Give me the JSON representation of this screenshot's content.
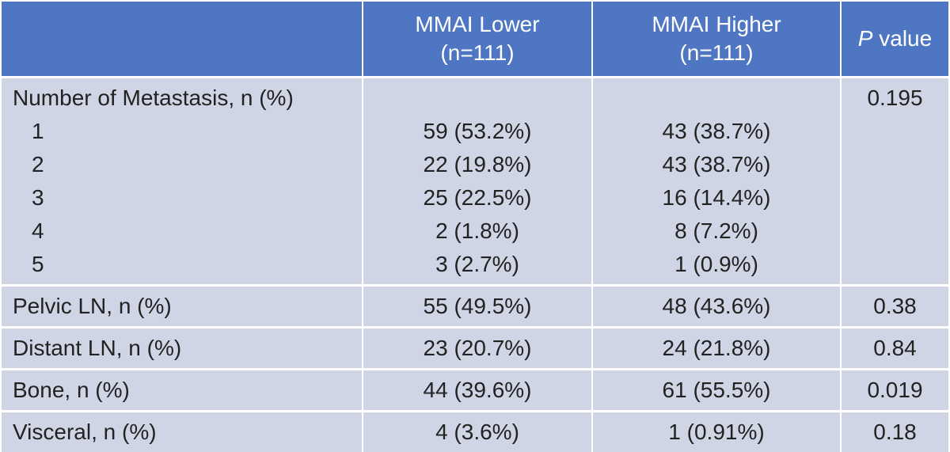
{
  "table": {
    "headers": [
      {
        "line1": "",
        "line2": ""
      },
      {
        "line1": "MMAI Lower",
        "line2": "(n=111)"
      },
      {
        "line1": "MMAI Higher",
        "line2": "(n=111)"
      },
      {
        "p_italic": "P",
        "p_rest": " value"
      }
    ],
    "metastasis": {
      "label": "Number of Metastasis, n (%)",
      "p_value": "0.195",
      "rows": [
        {
          "label": "1",
          "lower": "59 (53.2%)",
          "higher": "43 (38.7%)"
        },
        {
          "label": "2",
          "lower": "22 (19.8%)",
          "higher": "43 (38.7%)"
        },
        {
          "label": "3",
          "lower": "25 (22.5%)",
          "higher": "16 (14.4%)"
        },
        {
          "label": "4",
          "lower": "2 (1.8%)",
          "higher": "8 (7.2%)"
        },
        {
          "label": "5",
          "lower": "3 (2.7%)",
          "higher": "1 (0.9%)"
        }
      ]
    },
    "rows": [
      {
        "label": "Pelvic LN, n (%)",
        "lower": "55 (49.5%)",
        "higher": "48 (43.6%)",
        "p": "0.38"
      },
      {
        "label": "Distant LN, n (%)",
        "lower": "23 (20.7%)",
        "higher": "24 (21.8%)",
        "p": "0.84"
      },
      {
        "label": "Bone, n (%)",
        "lower": "44 (39.6%)",
        "higher": "61 (55.5%)",
        "p": "0.019"
      },
      {
        "label": "Visceral, n (%)",
        "lower": "4 (3.6%)",
        "higher": "1 (0.91%)",
        "p": "0.18"
      }
    ]
  },
  "colors": {
    "header_bg": "#4f76c2",
    "cell_bg": "#cfd5e5",
    "divider": "#ffffff"
  }
}
